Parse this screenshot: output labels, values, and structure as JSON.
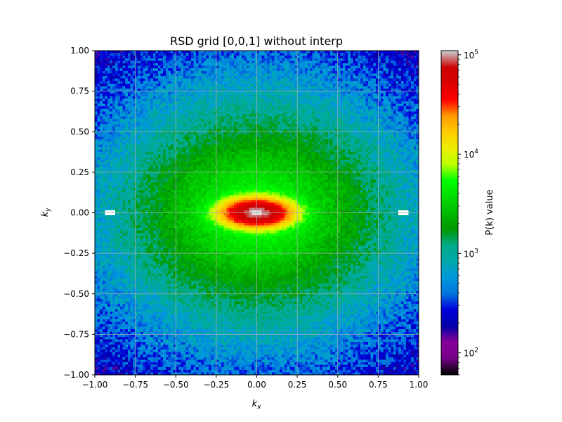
{
  "chart_data": {
    "type": "heatmap",
    "title": "RSD grid [0,0,1] without interp",
    "xlabel": "k",
    "xlabel_sub": "x",
    "ylabel": "k",
    "ylabel_sub": "y",
    "xlim": [
      -1.0,
      1.0
    ],
    "ylim": [
      -1.0,
      1.0
    ],
    "x_ticks": [
      -1.0,
      -0.75,
      -0.5,
      -0.25,
      0.0,
      0.25,
      0.5,
      0.75,
      1.0
    ],
    "x_tick_labels": [
      "−1.00",
      "−0.75",
      "−0.50",
      "−0.25",
      "0.00",
      "0.25",
      "0.50",
      "0.75",
      "1.00"
    ],
    "y_ticks": [
      1.0,
      0.75,
      0.5,
      0.25,
      0.0,
      -0.25,
      -0.5,
      -0.75,
      -1.0
    ],
    "y_tick_labels": [
      "1.00",
      "0.75",
      "0.50",
      "0.25",
      "0.00",
      "−0.25",
      "−0.50",
      "−0.75",
      "−1.00"
    ],
    "grid": true,
    "grid_resolution": 128,
    "field_model": {
      "description": "anisotropic P(k) peaking at origin, elongated along k_x",
      "peak_value": 100000,
      "core_sigma_x": 0.11,
      "core_sigma_y": 0.045,
      "halo_scale_x": 0.46,
      "halo_scale_y": 0.32,
      "floor_value": 60
    },
    "colorbar": {
      "label": "P(k) value",
      "scale": "log",
      "vmin": 60,
      "vmax": 110000,
      "major_ticks": [
        100,
        1000,
        10000,
        100000
      ],
      "major_tick_base": "10",
      "major_tick_exponents": [
        "2",
        "3",
        "4",
        "5"
      ],
      "colormap": "nipy_spectral"
    }
  }
}
